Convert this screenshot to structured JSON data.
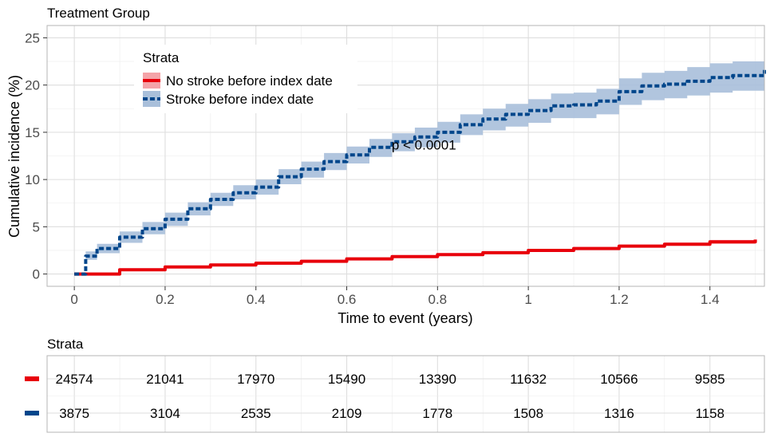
{
  "plot": {
    "subtitle": "Treatment Group",
    "pvalue": "p < 0.0001"
  },
  "legend": {
    "title": "Strata",
    "items": [
      {
        "label": "No stroke before index date",
        "color": "#e8000b",
        "fill": "#f4a3a8",
        "linetype": "solid"
      },
      {
        "label": "Stroke before index date",
        "color": "#00468b",
        "fill": "#a9bfda",
        "linetype": "dashed"
      }
    ]
  },
  "risk_table": {
    "title": "Strata",
    "rows": [
      {
        "color": "#e8000b",
        "values": [
          "24574",
          "21041",
          "17970",
          "15490",
          "13390",
          "11632",
          "10566",
          "9585"
        ]
      },
      {
        "color": "#00468b",
        "values": [
          "3875",
          "3104",
          "2535",
          "2109",
          "1778",
          "1508",
          "1316",
          "1158"
        ]
      }
    ]
  },
  "chart_data": {
    "type": "line",
    "title": "",
    "xlabel": "Time to event (years)",
    "ylabel": "Cumulative incidence (%)",
    "xlim": [
      -0.06,
      1.52
    ],
    "ylim": [
      -1.3,
      26.3
    ],
    "xticks": [
      0,
      0.2,
      0.4,
      0.6,
      0.8,
      1,
      1.2,
      1.4
    ],
    "xtick_labels": [
      "0",
      "0.2",
      "0.4",
      "0.6",
      "0.8",
      "1",
      "1.2",
      "1.4"
    ],
    "yticks": [
      0,
      5,
      10,
      15,
      20,
      25
    ],
    "ytick_labels": [
      "0",
      "5",
      "10",
      "15",
      "20",
      "25"
    ],
    "grid": true,
    "legend_position": "top-left",
    "annotation": {
      "text": "p < 0.0001",
      "x": 0.77,
      "y": 13.7
    },
    "series": [
      {
        "name": "No stroke before index date",
        "color": "#e8000b",
        "band_color": "#f4a3a8",
        "x": [
          0,
          0.1,
          0.2,
          0.3,
          0.4,
          0.5,
          0.6,
          0.7,
          0.8,
          0.9,
          1.0,
          1.1,
          1.2,
          1.3,
          1.4,
          1.5
        ],
        "y": [
          0,
          0.45,
          0.75,
          0.95,
          1.15,
          1.35,
          1.6,
          1.85,
          2.05,
          2.25,
          2.5,
          2.7,
          2.95,
          3.15,
          3.4,
          3.65
        ],
        "lower": [
          0,
          0.4,
          0.68,
          0.88,
          1.05,
          1.25,
          1.5,
          1.72,
          1.92,
          2.12,
          2.35,
          2.55,
          2.8,
          2.98,
          3.2,
          3.42
        ],
        "upper": [
          0,
          0.5,
          0.82,
          1.03,
          1.25,
          1.45,
          1.7,
          1.98,
          2.18,
          2.4,
          2.65,
          2.85,
          3.1,
          3.32,
          3.6,
          3.88
        ]
      },
      {
        "name": "Stroke before index date",
        "color": "#00468b",
        "band_color": "#a9bfda",
        "x": [
          0,
          0.025,
          0.05,
          0.1,
          0.15,
          0.2,
          0.25,
          0.3,
          0.35,
          0.4,
          0.45,
          0.5,
          0.55,
          0.6,
          0.65,
          0.7,
          0.75,
          0.8,
          0.85,
          0.9,
          0.95,
          1.0,
          1.05,
          1.1,
          1.15,
          1.2,
          1.25,
          1.3,
          1.35,
          1.4,
          1.45,
          1.52
        ],
        "y": [
          0,
          1.9,
          2.7,
          3.9,
          4.8,
          5.8,
          6.9,
          7.9,
          8.6,
          9.2,
          10.3,
          11.1,
          11.9,
          12.6,
          13.4,
          14.0,
          14.5,
          15.0,
          15.8,
          16.4,
          16.9,
          17.3,
          17.8,
          17.9,
          18.3,
          19.3,
          19.9,
          20.1,
          20.4,
          20.8,
          21.0,
          21.6
        ],
        "lower": [
          0,
          1.5,
          2.2,
          3.3,
          4.2,
          5.1,
          6.2,
          7.2,
          7.9,
          8.4,
          9.5,
          10.2,
          11.0,
          11.7,
          12.4,
          13.0,
          13.4,
          13.9,
          14.7,
          15.2,
          15.6,
          16.0,
          16.5,
          16.5,
          16.9,
          17.9,
          18.4,
          18.6,
          18.9,
          19.2,
          19.4,
          20.0
        ],
        "upper": [
          0,
          2.4,
          3.2,
          4.5,
          5.5,
          6.5,
          7.6,
          8.6,
          9.4,
          10.0,
          11.1,
          11.9,
          12.8,
          13.5,
          14.3,
          14.9,
          15.5,
          16.1,
          16.9,
          17.5,
          18.0,
          18.5,
          19.1,
          19.2,
          19.6,
          20.7,
          21.3,
          21.5,
          21.9,
          22.3,
          22.5,
          23.2
        ]
      }
    ]
  }
}
